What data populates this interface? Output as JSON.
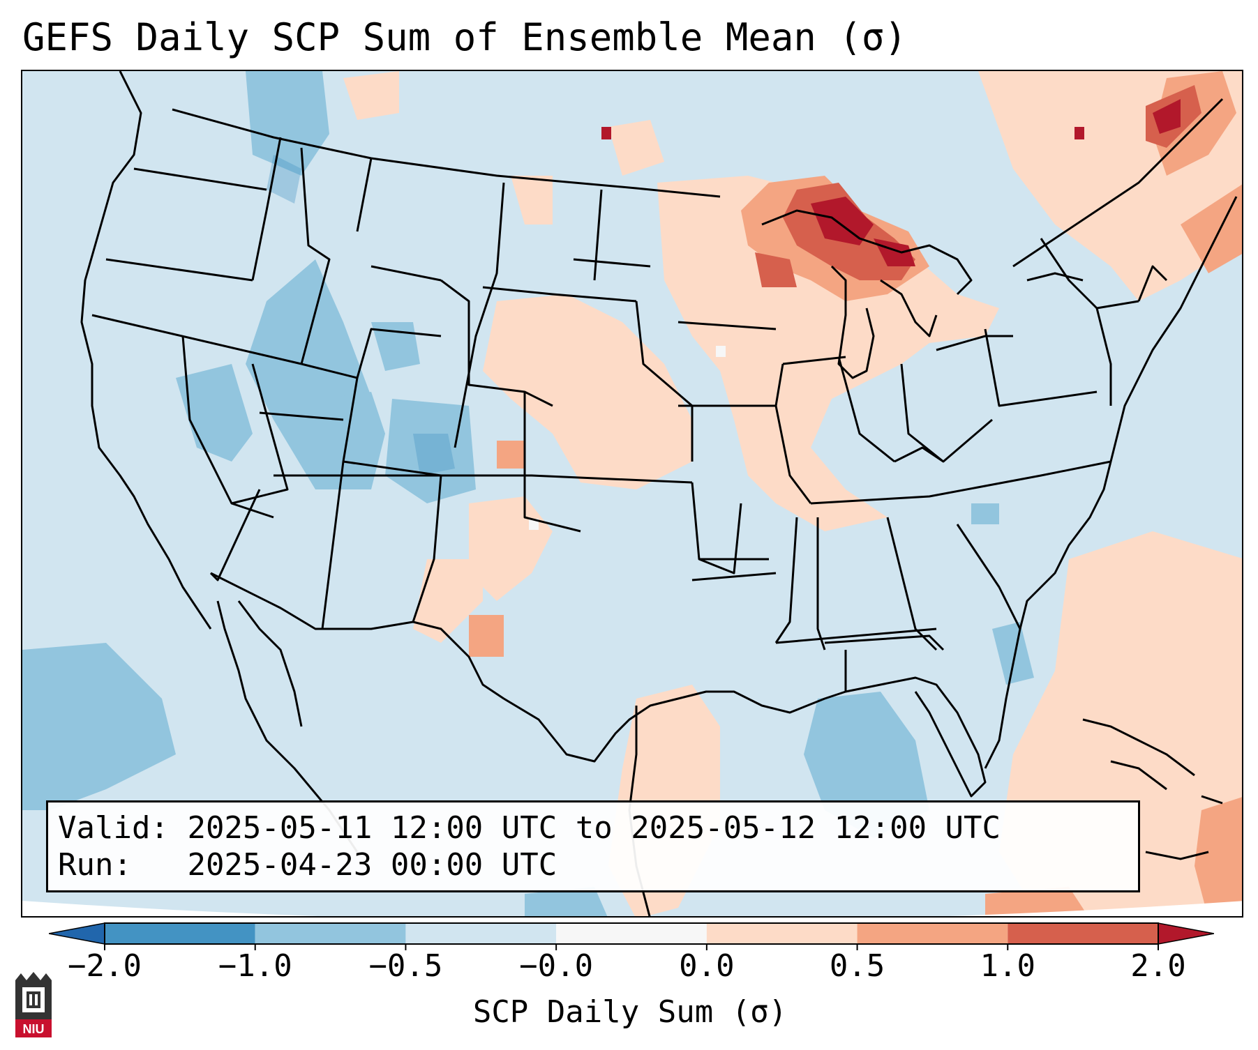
{
  "title": "GEFS Daily SCP Sum of Ensemble Mean (σ)",
  "info": {
    "valid_label": "Valid:",
    "valid_value": "2025-05-11 12:00 UTC to 2025-05-12 12:00 UTC",
    "run_label": "Run:",
    "run_value": "2025-04-23 00:00 UTC"
  },
  "colorbar": {
    "label": "SCP Daily Sum (σ)",
    "ticks": [
      "−2.0",
      "−1.0",
      "−0.5",
      "−0.0",
      "0.0",
      "0.5",
      "1.0",
      "2.0"
    ],
    "bin_colors": [
      "#2166ac",
      "#4393c3",
      "#92c5de",
      "#d1e5f0",
      "#f7f7f7",
      "#fddbc7",
      "#f4a582",
      "#d6604d",
      "#b2182b"
    ],
    "extend": "both"
  },
  "map": {
    "projection": "Lambert Conformal, CONUS",
    "background_anomaly": "-0.5 to -0.0",
    "regions": [
      {
        "name": "Upper Great Lakes / Upper Michigan",
        "value_range": "1.0 to 2.0"
      },
      {
        "name": "Wisconsin / Michigan",
        "value_range": "0.5 to 1.0"
      },
      {
        "name": "Illinois / Indiana / Iowa / Nebraska",
        "value_range": "0.0 to 0.5"
      },
      {
        "name": "Quebec / New Brunswick",
        "value_range": "0.5 to 2.0"
      },
      {
        "name": "Western Atlantic / Caribbean",
        "value_range": "0.0 to 1.0"
      },
      {
        "name": "Great Basin / Rockies",
        "value_range": "-1.0 to -0.5"
      },
      {
        "name": "Eastern Pacific",
        "value_range": "-1.0 to -0.5"
      },
      {
        "name": "Gulf of Mexico",
        "value_range": "-1.0 to -0.5"
      }
    ]
  },
  "logo": {
    "text": "NIU",
    "primary_color": "#c8102e"
  }
}
